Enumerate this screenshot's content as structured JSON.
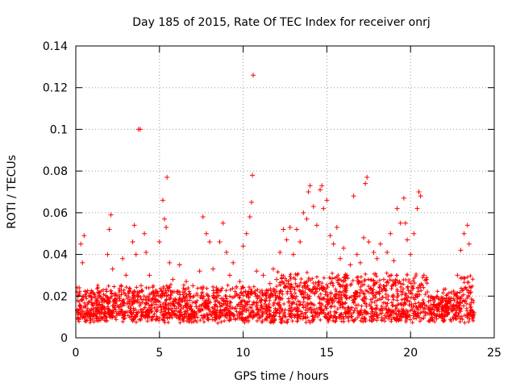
{
  "chart_data": {
    "type": "scatter",
    "title": "Day 185 of 2015, Rate Of TEC Index for receiver onrj",
    "xlabel": "GPS time / hours",
    "ylabel": "ROTI / TECUs",
    "xlim": [
      0,
      25
    ],
    "ylim": [
      0,
      0.14
    ],
    "xticks": [
      0,
      5,
      10,
      15,
      20,
      25
    ],
    "xtick_labels": [
      "0",
      "5",
      "10",
      "15",
      "20",
      "25"
    ],
    "yticks": [
      0,
      0.02,
      0.04,
      0.06,
      0.08,
      0.1,
      0.12,
      0.14
    ],
    "ytick_labels": [
      "0",
      "0.02",
      "0.04",
      "0.06",
      "0.08",
      "0.1",
      "0.12",
      "0.14"
    ],
    "grid": true,
    "marker": "+",
    "color": "#ff0000",
    "series": [
      {
        "name": "ROTI",
        "points": [
          [
            0.1,
            0.013
          ],
          [
            0.2,
            0.024
          ],
          [
            0.3,
            0.045
          ],
          [
            0.4,
            0.036
          ],
          [
            0.5,
            0.049
          ],
          [
            0.6,
            0.02
          ],
          [
            0.8,
            0.011
          ],
          [
            1.0,
            0.009
          ],
          [
            1.2,
            0.014
          ],
          [
            1.4,
            0.017
          ],
          [
            1.5,
            0.012
          ],
          [
            1.7,
            0.018
          ],
          [
            1.9,
            0.04
          ],
          [
            2.0,
            0.052
          ],
          [
            2.1,
            0.059
          ],
          [
            2.2,
            0.033
          ],
          [
            2.4,
            0.021
          ],
          [
            2.6,
            0.015
          ],
          [
            2.8,
            0.038
          ],
          [
            3.0,
            0.03
          ],
          [
            3.2,
            0.022
          ],
          [
            3.4,
            0.046
          ],
          [
            3.5,
            0.054
          ],
          [
            3.6,
            0.04
          ],
          [
            3.75,
            0.1
          ],
          [
            3.85,
            0.1
          ],
          [
            3.9,
            0.025
          ],
          [
            4.1,
            0.05
          ],
          [
            4.2,
            0.041
          ],
          [
            4.4,
            0.03
          ],
          [
            4.6,
            0.019
          ],
          [
            4.8,
            0.016
          ],
          [
            5.0,
            0.046
          ],
          [
            5.2,
            0.066
          ],
          [
            5.3,
            0.057
          ],
          [
            5.4,
            0.053
          ],
          [
            5.45,
            0.077
          ],
          [
            5.6,
            0.036
          ],
          [
            5.8,
            0.028
          ],
          [
            6.0,
            0.014
          ],
          [
            6.2,
            0.035
          ],
          [
            6.4,
            0.022
          ],
          [
            6.6,
            0.027
          ],
          [
            6.8,
            0.018
          ],
          [
            7.0,
            0.025
          ],
          [
            7.2,
            0.015
          ],
          [
            7.4,
            0.032
          ],
          [
            7.6,
            0.058
          ],
          [
            7.8,
            0.05
          ],
          [
            8.0,
            0.046
          ],
          [
            8.2,
            0.033
          ],
          [
            8.4,
            0.024
          ],
          [
            8.6,
            0.046
          ],
          [
            8.8,
            0.055
          ],
          [
            9.0,
            0.041
          ],
          [
            9.2,
            0.03
          ],
          [
            9.4,
            0.036
          ],
          [
            9.6,
            0.021
          ],
          [
            9.8,
            0.027
          ],
          [
            10.0,
            0.044
          ],
          [
            10.2,
            0.05
          ],
          [
            10.4,
            0.058
          ],
          [
            10.5,
            0.065
          ],
          [
            10.55,
            0.078
          ],
          [
            10.6,
            0.126
          ],
          [
            10.8,
            0.032
          ],
          [
            11.0,
            0.022
          ],
          [
            11.2,
            0.03
          ],
          [
            11.4,
            0.019
          ],
          [
            11.6,
            0.026
          ],
          [
            11.8,
            0.033
          ],
          [
            12.0,
            0.028
          ],
          [
            12.2,
            0.041
          ],
          [
            12.4,
            0.052
          ],
          [
            12.6,
            0.047
          ],
          [
            12.8,
            0.053
          ],
          [
            13.0,
            0.04
          ],
          [
            13.2,
            0.052
          ],
          [
            13.4,
            0.046
          ],
          [
            13.6,
            0.06
          ],
          [
            13.8,
            0.057
          ],
          [
            13.9,
            0.07
          ],
          [
            14.0,
            0.073
          ],
          [
            14.2,
            0.063
          ],
          [
            14.4,
            0.054
          ],
          [
            14.6,
            0.071
          ],
          [
            14.7,
            0.073
          ],
          [
            14.8,
            0.062
          ],
          [
            15.0,
            0.066
          ],
          [
            15.2,
            0.049
          ],
          [
            15.4,
            0.045
          ],
          [
            15.6,
            0.053
          ],
          [
            15.8,
            0.038
          ],
          [
            16.0,
            0.043
          ],
          [
            16.2,
            0.03
          ],
          [
            16.4,
            0.035
          ],
          [
            16.6,
            0.068
          ],
          [
            16.8,
            0.04
          ],
          [
            17.0,
            0.036
          ],
          [
            17.2,
            0.048
          ],
          [
            17.3,
            0.074
          ],
          [
            17.4,
            0.077
          ],
          [
            17.5,
            0.046
          ],
          [
            17.8,
            0.041
          ],
          [
            18.0,
            0.038
          ],
          [
            18.2,
            0.045
          ],
          [
            18.4,
            0.028
          ],
          [
            18.6,
            0.041
          ],
          [
            18.8,
            0.05
          ],
          [
            19.0,
            0.037
          ],
          [
            19.2,
            0.062
          ],
          [
            19.4,
            0.055
          ],
          [
            19.6,
            0.067
          ],
          [
            19.7,
            0.055
          ],
          [
            19.8,
            0.047
          ],
          [
            20.0,
            0.04
          ],
          [
            20.2,
            0.05
          ],
          [
            20.4,
            0.062
          ],
          [
            20.5,
            0.07
          ],
          [
            20.6,
            0.068
          ],
          [
            20.8,
            0.03
          ],
          [
            21.0,
            0.022
          ],
          [
            21.2,
            0.018
          ],
          [
            21.4,
            0.016
          ],
          [
            21.6,
            0.014
          ],
          [
            21.8,
            0.017
          ],
          [
            22.0,
            0.015
          ],
          [
            22.2,
            0.012
          ],
          [
            22.4,
            0.018
          ],
          [
            22.6,
            0.021
          ],
          [
            22.8,
            0.03
          ],
          [
            23.0,
            0.042
          ],
          [
            23.2,
            0.05
          ],
          [
            23.4,
            0.054
          ],
          [
            23.5,
            0.045
          ],
          [
            23.6,
            0.022
          ],
          [
            23.8,
            0.012
          ]
        ]
      }
    ]
  }
}
